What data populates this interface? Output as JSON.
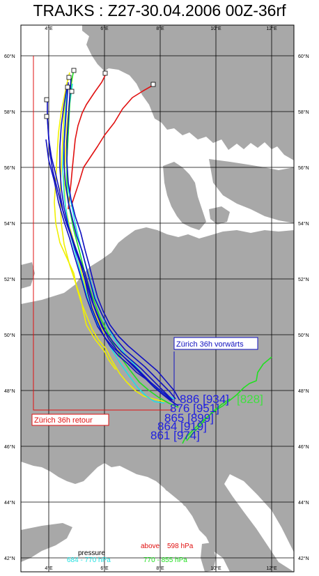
{
  "title": "TRAJKS : Z27-30.04.2006 00Z-36rf",
  "lat_labels": [
    "60°N",
    "58°N",
    "56°N",
    "54°N",
    "52°N",
    "50°N",
    "48°N",
    "46°N",
    "44°N",
    "42°N"
  ],
  "lat_values": [
    60,
    58,
    56,
    54,
    52,
    50,
    48,
    46,
    44,
    42
  ],
  "lon_labels": [
    "4°E",
    "6°E",
    "8°E",
    "10°E",
    "12°E"
  ],
  "lon_values": [
    4,
    6,
    8,
    10,
    12
  ],
  "labels": {
    "forward": "Zürich 36h vorwärts",
    "return": "Zürich 36h retour"
  },
  "endpoint_values": [
    {
      "text": "886",
      "bracket": "[934]",
      "color": "#2020e0",
      "bracket_color": "#2020e0"
    },
    {
      "text": "",
      "bracket": "[828]",
      "color": "#2020e0",
      "bracket_color": "#40e040"
    },
    {
      "text": "876",
      "bracket": "[951]",
      "color": "#2020e0",
      "bracket_color": "#2020e0"
    },
    {
      "text": "865",
      "bracket": "[899]",
      "color": "#2020e0",
      "bracket_color": "#2020e0"
    },
    {
      "text": "864",
      "bracket": "[919]",
      "color": "#2020e0",
      "bracket_color": "#2020e0"
    },
    {
      "text": "861",
      "bracket": "[974]",
      "color": "#2020e0",
      "bracket_color": "#2020e0"
    }
  ],
  "legend": {
    "title": "pressure",
    "above": "above",
    "above_value": "598 hPa",
    "cyan_range": "684 - 770 hPa",
    "green_range": "770 - 855 hPa"
  },
  "colors": {
    "land": "#a8a8a8",
    "sea": "#ffffff",
    "grid": "#000000",
    "red": "#e01010",
    "yellow": "#f0f000",
    "cyan": "#20e0e0",
    "green": "#20e020",
    "blue": "#1010c0"
  }
}
